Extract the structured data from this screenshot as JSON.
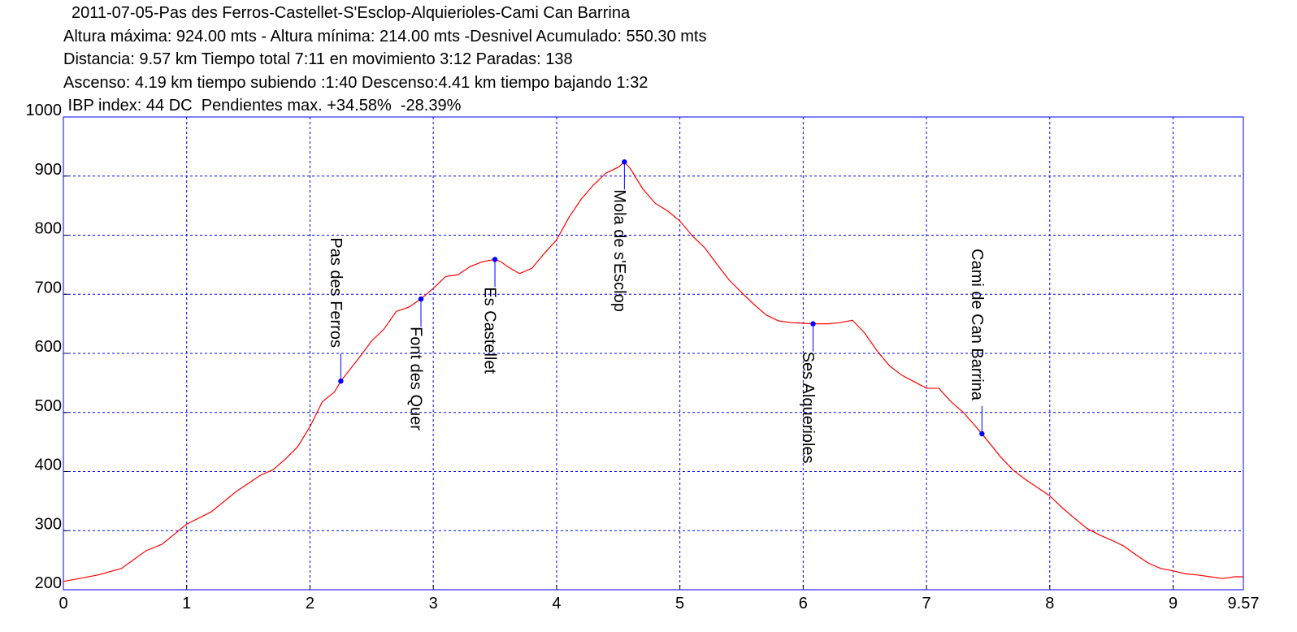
{
  "chart_data": {
    "type": "line",
    "title": "2011-07-05-Pas des Ferros-Castellet-S'Esclop-Alquierioles-Cami Can Barrina",
    "subtitles": [
      "Altura máxima: 924.00 mts - Altura mínima: 214.00 mts -Desnivel Acumulado: 550.30 mts",
      "Distancia: 9.57 km  Tiempo total 7:11  en movimiento 3:12 Paradas: 138",
      "Ascenso: 4.19 km  tiempo subiendo :1:40  Descenso:4.41 km tiempo bajando 1:32",
      " IBP index: 44 DC  Pendientes max. +34.58%  -28.39%"
    ],
    "x": [
      0,
      0.28,
      0.47,
      0.67,
      0.8,
      1.0,
      1.2,
      1.4,
      1.6,
      1.7,
      1.8,
      1.9,
      2.0,
      2.1,
      2.2,
      2.25,
      2.4,
      2.5,
      2.6,
      2.7,
      2.8,
      2.9,
      3.0,
      3.1,
      3.2,
      3.3,
      3.4,
      3.5,
      3.55,
      3.6,
      3.7,
      3.8,
      3.9,
      4.0,
      4.1,
      4.2,
      4.3,
      4.4,
      4.5,
      4.55,
      4.6,
      4.7,
      4.8,
      4.9,
      5.0,
      5.1,
      5.2,
      5.3,
      5.4,
      5.5,
      5.6,
      5.7,
      5.8,
      5.9,
      6.0,
      6.08,
      6.2,
      6.3,
      6.4,
      6.5,
      6.6,
      6.7,
      6.8,
      6.9,
      7.0,
      7.1,
      7.2,
      7.3,
      7.4,
      7.45,
      7.6,
      7.7,
      7.8,
      7.9,
      8.0,
      8.1,
      8.2,
      8.3,
      8.4,
      8.5,
      8.6,
      8.7,
      8.8,
      8.9,
      9.0,
      9.1,
      9.2,
      9.3,
      9.4,
      9.5,
      9.57
    ],
    "series": [
      {
        "color": "#ff0000",
        "values": [
          214,
          225,
          236,
          266,
          277,
          311,
          332,
          366,
          394,
          403,
          421,
          442,
          476,
          518,
          535,
          553,
          593,
          621,
          641,
          671,
          678,
          692,
          710,
          730,
          733,
          747,
          755,
          759,
          755,
          747,
          735,
          744,
          769,
          792,
          830,
          861,
          885,
          905,
          915,
          924,
          912,
          878,
          854,
          841,
          824,
          799,
          779,
          751,
          724,
          703,
          683,
          665,
          655,
          652,
          651,
          650,
          650,
          652,
          656,
          634,
          604,
          579,
          563,
          552,
          541,
          541,
          518,
          500,
          476,
          464,
          425,
          403,
          387,
          373,
          359,
          339,
          321,
          304,
          293,
          284,
          274,
          259,
          245,
          236,
          232,
          227,
          225,
          222,
          219,
          222,
          222
        ]
      }
    ],
    "waypoints": [
      {
        "label": "Pas des Ferros",
        "km": 2.25,
        "elevation": 553,
        "label_position": "above"
      },
      {
        "label": "Font des Quer",
        "km": 2.9,
        "elevation": 692,
        "label_position": "below"
      },
      {
        "label": "Es Castellet",
        "km": 3.5,
        "elevation": 759,
        "label_position": "below"
      },
      {
        "label": "Mola de s'Esclop",
        "km": 4.55,
        "elevation": 924,
        "label_position": "below"
      },
      {
        "label": "Ses Alquerioles",
        "km": 6.08,
        "elevation": 650,
        "label_position": "below"
      },
      {
        "label": "Cami de Can Barrina",
        "km": 7.45,
        "elevation": 464,
        "label_position": "above"
      }
    ],
    "waypoint_color": "#0000ff",
    "frame_color": "#0000ff",
    "xlim": [
      0,
      9.57
    ],
    "xticks": [
      0,
      1,
      2,
      3,
      4,
      5,
      6,
      7,
      8,
      9,
      9.57
    ],
    "ylim": [
      200,
      1000
    ],
    "yticks": [
      200,
      300,
      400,
      500,
      600,
      700,
      800,
      900,
      1000
    ],
    "grid": true
  }
}
